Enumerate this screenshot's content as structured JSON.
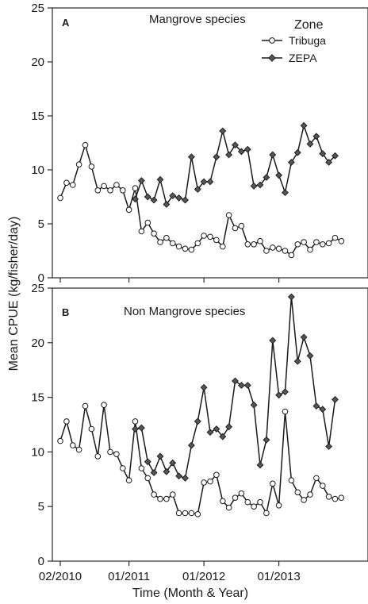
{
  "ylabel": "Mean CPUE (kg/fisher/day)",
  "xlabel": "Time (Month & Year)",
  "colors": {
    "tribuga_fill": "#ffffff",
    "zepa_fill": "#555555",
    "line": "#1a1a1a"
  },
  "chart_data": [
    {
      "type": "line",
      "panel_letter": "A",
      "title": "Mangrove species",
      "ylim": [
        0,
        25
      ],
      "yticks": [
        0,
        5,
        10,
        15,
        20,
        25
      ],
      "xlim": [
        0,
        48
      ],
      "xticks": [
        {
          "x": 0,
          "label": "02/2010"
        },
        {
          "x": 11,
          "label": "01/2011"
        },
        {
          "x": 23,
          "label": "01/2012"
        },
        {
          "x": 35,
          "label": "01/2013"
        }
      ],
      "legend": {
        "title": "Zone",
        "position": "top-right"
      },
      "series": [
        {
          "name": "Tribuga",
          "marker": "circle",
          "x": [
            0,
            1,
            2,
            3,
            4,
            5,
            6,
            7,
            8,
            9,
            10,
            11,
            12,
            13,
            14,
            15,
            16,
            17,
            18,
            19,
            20,
            21,
            22,
            23,
            24,
            25,
            26,
            27,
            28,
            29,
            30,
            31,
            32,
            33,
            34,
            35,
            36,
            37,
            38,
            39,
            40,
            41,
            42,
            43,
            44,
            45,
            46,
            47
          ],
          "values": [
            7.4,
            8.8,
            8.6,
            10.5,
            12.3,
            10.3,
            8.1,
            8.5,
            8.1,
            8.6,
            8.1,
            6.3,
            8.3,
            4.3,
            5.1,
            4.1,
            3.3,
            3.7,
            3.2,
            2.9,
            2.7,
            2.6,
            3.2,
            3.9,
            3.8,
            3.5,
            2.9,
            5.8,
            4.6,
            4.8,
            3.1,
            3.1,
            3.4,
            2.5,
            2.8,
            2.7,
            2.5,
            2.1,
            3.1,
            3.3,
            2.6,
            3.3,
            3.1,
            3.2,
            3.7,
            3.4,
            null,
            null
          ]
        },
        {
          "name": "ZEPA",
          "marker": "diamond",
          "x": [
            12,
            13,
            14,
            15,
            16,
            17,
            18,
            19,
            20,
            21,
            22,
            23,
            24,
            25,
            26,
            27,
            28,
            29,
            30,
            31,
            32,
            33,
            34,
            35,
            36,
            37,
            38,
            39,
            40,
            41,
            42,
            43,
            44,
            45,
            46,
            47
          ],
          "values": [
            7.3,
            9.0,
            7.5,
            7.2,
            9.1,
            6.8,
            7.6,
            7.4,
            7.2,
            11.2,
            8.2,
            8.9,
            8.9,
            11.2,
            13.6,
            11.4,
            12.3,
            11.7,
            11.9,
            8.5,
            8.6,
            9.3,
            11.4,
            9.5,
            7.9,
            10.7,
            11.6,
            14.1,
            12.4,
            13.1,
            11.5,
            10.7,
            11.3,
            null,
            null,
            null
          ]
        }
      ]
    },
    {
      "type": "line",
      "panel_letter": "B",
      "title": "Non Mangrove species",
      "ylim": [
        0,
        25
      ],
      "yticks": [
        0,
        5,
        10,
        15,
        20,
        25
      ],
      "xlim": [
        0,
        48
      ],
      "xticks": [
        {
          "x": 0,
          "label": "02/2010"
        },
        {
          "x": 11,
          "label": "01/2011"
        },
        {
          "x": 23,
          "label": "01/2012"
        },
        {
          "x": 35,
          "label": "01/2013"
        }
      ],
      "series": [
        {
          "name": "Tribuga",
          "marker": "circle",
          "x": [
            0,
            1,
            2,
            3,
            4,
            5,
            6,
            7,
            8,
            9,
            10,
            11,
            12,
            13,
            14,
            15,
            16,
            17,
            18,
            19,
            20,
            21,
            22,
            23,
            24,
            25,
            26,
            27,
            28,
            29,
            30,
            31,
            32,
            33,
            34,
            35,
            36,
            37,
            38,
            39,
            40,
            41,
            42,
            43,
            44,
            45,
            46,
            47
          ],
          "values": [
            11.0,
            12.8,
            10.6,
            10.2,
            14.2,
            12.1,
            9.6,
            14.3,
            10.0,
            9.8,
            8.5,
            7.4,
            12.8,
            8.5,
            7.6,
            6.1,
            5.7,
            5.7,
            6.1,
            4.4,
            4.4,
            4.4,
            4.3,
            7.2,
            7.3,
            7.9,
            5.5,
            4.9,
            5.8,
            6.2,
            5.4,
            5.0,
            5.4,
            4.4,
            7.1,
            5.1,
            13.7,
            7.4,
            6.3,
            5.6,
            6.1,
            7.6,
            6.9,
            5.9,
            5.7,
            5.8,
            null,
            null
          ]
        },
        {
          "name": "ZEPA",
          "marker": "diamond",
          "x": [
            12,
            13,
            14,
            15,
            16,
            17,
            18,
            19,
            20,
            21,
            22,
            23,
            24,
            25,
            26,
            27,
            28,
            29,
            30,
            31,
            32,
            33,
            34,
            35,
            36,
            37,
            38,
            39,
            40,
            41,
            42,
            43,
            44,
            45,
            46,
            47
          ],
          "values": [
            12.1,
            12.2,
            9.1,
            8.1,
            9.6,
            8.2,
            9.0,
            7.8,
            7.6,
            10.6,
            12.8,
            15.9,
            11.8,
            12.1,
            11.4,
            12.3,
            16.5,
            16.1,
            16.1,
            14.3,
            8.8,
            11.1,
            20.2,
            15.2,
            15.5,
            24.2,
            18.3,
            20.5,
            18.8,
            14.2,
            13.9,
            10.5,
            14.8,
            null,
            null,
            null
          ]
        }
      ]
    }
  ]
}
